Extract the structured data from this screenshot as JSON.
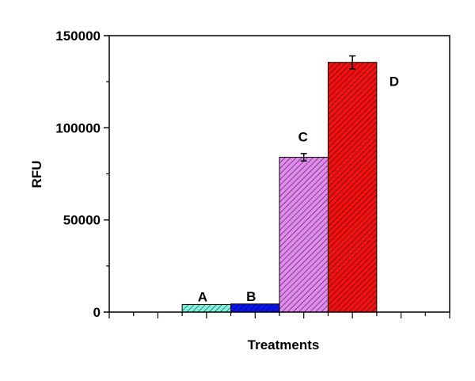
{
  "chart_data": {
    "type": "bar",
    "title": "",
    "xlabel": "Treatments",
    "ylabel": "RFU",
    "ylim": [
      0,
      150000
    ],
    "yticks": [
      "0",
      "50000",
      "100000",
      "150000"
    ],
    "categories": [
      "A",
      "B",
      "C",
      "D"
    ],
    "values": [
      4100,
      4400,
      84000,
      135500
    ],
    "errors": [
      null,
      null,
      2000,
      3500
    ],
    "colors": [
      "#7ff5e0",
      "#0a14f0",
      "#e38af0",
      "#f51010"
    ],
    "hatch": "diagonal",
    "grid": false,
    "legend": "none"
  }
}
